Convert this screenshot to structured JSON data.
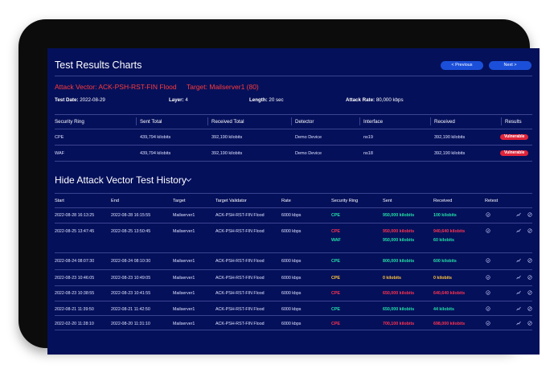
{
  "header": {
    "title": "Test Results Charts",
    "prev_label": "< Previous",
    "next_label": "Next >"
  },
  "attack": {
    "vector_text": "Attack Vector: ACK-PSH-RST-FIN Flood",
    "target_text": "Target: Mailserver1 (80)"
  },
  "meta": {
    "test_date_label": "Test Date:",
    "test_date": "2022-08-29",
    "layer_label": "Layer:",
    "layer": "4",
    "length_label": "Length:",
    "length": "20 sec",
    "rate_label": "Attack Rate:",
    "rate": "80,000 kbps"
  },
  "summary": {
    "columns": [
      "Security Ring",
      "Sent Total",
      "Received Total",
      "Detector",
      "Interface",
      "Received",
      "Results"
    ],
    "rows": [
      {
        "ring": "CPE",
        "sent": "439,794 kilobits",
        "received_total": "392,190 kilobits",
        "detector": "Demo Device",
        "interface": "ns19",
        "received": "392,190 kilobits",
        "result": "Vulnerable"
      },
      {
        "ring": "WAF",
        "sent": "439,794 kilobits",
        "received_total": "392,190 kilobits",
        "detector": "Demo Device",
        "interface": "ns18",
        "received": "392,190 kilobits",
        "result": "Vulnerable"
      }
    ]
  },
  "history": {
    "title": "Hide Attack Vector Test History",
    "columns": [
      "Start",
      "End",
      "Target",
      "Target Validator",
      "Rate",
      "Security Ring",
      "Sent",
      "Received",
      "Retest"
    ],
    "rows": [
      {
        "start": "2022-08-28 16:13:25",
        "end": "2022-08-28 16:15:55",
        "target": "Mailserver1",
        "validator": "ACK-PSH-RST-FIN Flood",
        "rate": "6000 kbps",
        "rings": [
          {
            "ring": "CPE",
            "sent": "950,000 kilobits",
            "received": "100 kilobits",
            "status": "g"
          }
        ]
      },
      {
        "start": "2022-08-25 13:47:45",
        "end": "2022-08-25 13:50:45",
        "target": "Mailserver1",
        "validator": "ACK-PSH-RST-FIN Flood",
        "rate": "6000 kbps",
        "rings": [
          {
            "ring": "CPE",
            "sent": "950,000 kilobits",
            "received": "940,640 kilobits",
            "status": "r"
          },
          {
            "ring": "WAF",
            "sent": "950,000 kilobits",
            "received": "60 kilobits",
            "status": "g"
          }
        ]
      },
      {
        "start": "2022-08-24 08:07:30",
        "end": "2022-08-24 08:10:30",
        "target": "Mailserver1",
        "validator": "ACK-PSH-RST-FIN Flood",
        "rate": "6000 kbps",
        "rings": [
          {
            "ring": "CPE",
            "sent": "800,000 kilobits",
            "received": "600 kilobits",
            "status": "g"
          }
        ]
      },
      {
        "start": "2022-08-23 10:46:05",
        "end": "2022-08-23 10:49:05",
        "target": "Mailserver1",
        "validator": "ACK-PSH-RST-FIN Flood",
        "rate": "6000 kbps",
        "rings": [
          {
            "ring": "CPE",
            "sent": "0 kilobits",
            "received": "0 kilobits",
            "status": "y"
          }
        ]
      },
      {
        "start": "2022-08-23 10:38:55",
        "end": "2022-08-23 10:41:55",
        "target": "Mailserver1",
        "validator": "ACK-PSH-RST-FIN Flood",
        "rate": "6000 kbps",
        "rings": [
          {
            "ring": "CPE",
            "sent": "650,000 kilobits",
            "received": "640,640 kilobits",
            "status": "r"
          }
        ]
      },
      {
        "start": "2022-08-21 11:39:50",
        "end": "2022-08-21 11:42:50",
        "target": "Mailserver1",
        "validator": "ACK-PSH-RST-FIN Flood",
        "rate": "6000 kbps",
        "rings": [
          {
            "ring": "CPE",
            "sent": "650,000 kilobits",
            "received": "44 kilobits",
            "status": "g"
          }
        ]
      },
      {
        "start": "2022-02-20 11:28:10",
        "end": "2022-08-20 11:31:10",
        "target": "Mailserver1",
        "validator": "ACK-PSH-RST-FIN Flood",
        "rate": "6000 kbps",
        "rings": [
          {
            "ring": "CPE",
            "sent": "700,100 kilobits",
            "received": "698,000 kilobits",
            "status": "r"
          }
        ]
      }
    ]
  },
  "icons": [
    "retest-icon",
    "chart-icon",
    "block-icon",
    "chevron-down-icon"
  ],
  "colors": {
    "background": "#05105a",
    "accent": "#1b4fd9",
    "danger": "#ff3350",
    "ok": "#23e0a8",
    "warn": "#ffc53d"
  }
}
